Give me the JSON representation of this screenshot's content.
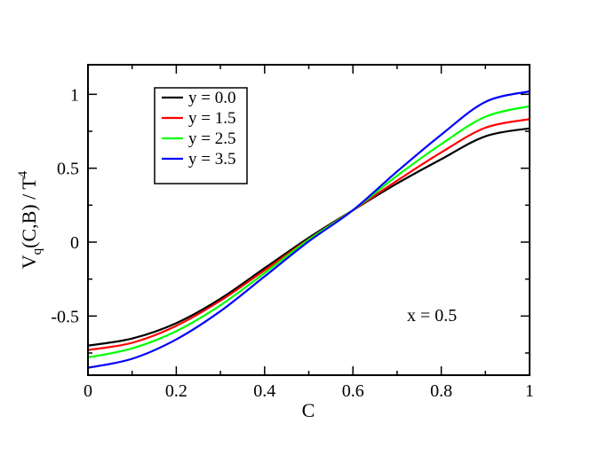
{
  "chart_data": {
    "type": "line",
    "xlabel": "C",
    "ylabel": {
      "base": "V",
      "sub": "q",
      "mid": "(C,B) / T",
      "sup": "4"
    },
    "xlim": [
      0,
      1
    ],
    "ylim": [
      -0.9,
      1.2
    ],
    "xticks": [
      0,
      0.2,
      0.4,
      0.6,
      0.8,
      1
    ],
    "xtick_labels": [
      "0",
      "0.2",
      "0.4",
      "0.6",
      "0.8",
      "1"
    ],
    "yticks": [
      -0.5,
      0,
      0.5,
      1
    ],
    "ytick_labels": [
      "-0.5",
      "0",
      "0.5",
      "1"
    ],
    "grid": false,
    "legend_position": "top-left",
    "annotation": "x = 0.5",
    "series": [
      {
        "name": "y = 0.0",
        "color": "#000000",
        "x": [
          0,
          0.1,
          0.2,
          0.3,
          0.4,
          0.5,
          0.6,
          0.7,
          0.8,
          0.9,
          1.0
        ],
        "y": [
          -0.7,
          -0.652,
          -0.548,
          -0.383,
          -0.176,
          0.03,
          0.216,
          0.397,
          0.561,
          0.716,
          0.77
        ]
      },
      {
        "name": "y = 1.5",
        "color": "#ff0000",
        "x": [
          0,
          0.1,
          0.2,
          0.3,
          0.4,
          0.5,
          0.6,
          0.7,
          0.8,
          0.9,
          1.0
        ],
        "y": [
          -0.73,
          -0.681,
          -0.566,
          -0.396,
          -0.19,
          0.02,
          0.216,
          0.416,
          0.607,
          0.774,
          0.832
        ]
      },
      {
        "name": "y = 2.5",
        "color": "#00ff00",
        "x": [
          0,
          0.1,
          0.2,
          0.3,
          0.4,
          0.5,
          0.6,
          0.7,
          0.8,
          0.9,
          1.0
        ],
        "y": [
          -0.78,
          -0.719,
          -0.602,
          -0.427,
          -0.209,
          0.017,
          0.216,
          0.449,
          0.663,
          0.848,
          0.92
        ]
      },
      {
        "name": "y = 3.5",
        "color": "#0000ff",
        "x": [
          0,
          0.1,
          0.2,
          0.3,
          0.4,
          0.5,
          0.6,
          0.7,
          0.8,
          0.9,
          1.0
        ],
        "y": [
          -0.85,
          -0.789,
          -0.658,
          -0.467,
          -0.232,
          0.005,
          0.216,
          0.478,
          0.727,
          0.949,
          1.02
        ]
      }
    ]
  }
}
